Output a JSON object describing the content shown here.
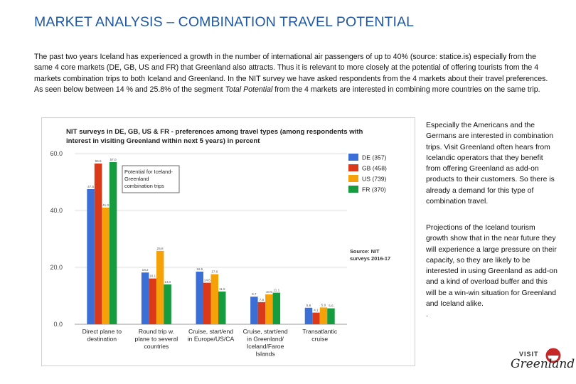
{
  "page": {
    "title": "MARKET ANALYSIS – COMBINATION TRAVEL POTENTIAL",
    "intro_part1": "The past two years Iceland has experienced a growth in the number of international air passengers of up to 40% (source: statice.is) especially from the same 4 core markets (DE, GB, US and FR) that Greenland also attracts. Thus it is relevant to more closely at the potential of offering tourists from the 4 markets combination trips to both Iceland and Greenland. In the NIT survey we have asked respondents from the 4 markets about their travel preferences. As seen below between 14 % and 25.8% of the segment ",
    "intro_em": "Total Potential",
    "intro_part2": " from the 4 markets are interested in combining more countries on the same trip.",
    "side_text_1": "Especially the Americans and the Germans are interested in combination trips. Visit Greenland often hears from Icelandic operators that they benefit from offering Greenland as add-on products to their customers. So there is already a demand for this type of combination travel.",
    "side_text_2": "Projections of the Iceland tourism growth show that in the near future they will experience a large pressure on their capacity, so they are likely to be interested in using Greenland as add-on and a kind of overload buffer and this will be a win-win situation for Greenland and Iceland alike.",
    "side_text_2_trail": ".",
    "logo_visit": "VISIT",
    "logo_script": "Greenland"
  },
  "chart_data": {
    "type": "bar",
    "title": "NIT surveys in DE, GB, US & FR - preferences among travel types (among respondents with interest in visiting Greenland within next 5 years) in percent",
    "categories": [
      [
        "Direct plane to",
        "destination"
      ],
      [
        "Round trip w.",
        "plane to several",
        "countries"
      ],
      [
        "Cruise, start/end",
        "in Europe/US/CA"
      ],
      [
        "Cruise, start/end",
        "in Greenland/",
        "Iceland/Faroe",
        "Islands"
      ],
      [
        "Transatlantic",
        "cruise"
      ]
    ],
    "series": [
      {
        "name": "DE (357)",
        "color": "#3b6fd6",
        "values": [
          47.5,
          18.2,
          18.5,
          9.7,
          5.8
        ]
      },
      {
        "name": "GB (458)",
        "color": "#db3a1a",
        "values": [
          56.5,
          16.1,
          14.6,
          7.8,
          4.1
        ]
      },
      {
        "name": "US (739)",
        "color": "#f5a20a",
        "values": [
          41.0,
          25.8,
          17.6,
          10.5,
          5.9
        ]
      },
      {
        "name": "FR (370)",
        "color": "#179b3f",
        "values": [
          57.0,
          14.0,
          11.5,
          11.1,
          5.6
        ]
      }
    ],
    "data_labels": [
      [
        "47.5",
        "56.5",
        "41.0",
        "57.0"
      ],
      [
        "18.2",
        "16.1",
        "25.8",
        "14.0"
      ],
      [
        "18.5",
        "14.6",
        "17.6",
        "11.5"
      ],
      [
        "9.7",
        "7.8",
        "10.5",
        "11.1"
      ],
      [
        "5.8",
        "4.1",
        "5.9",
        "5.6"
      ]
    ],
    "ylim": [
      0,
      60
    ],
    "yticks": [
      "0.0",
      "20.0",
      "40.0",
      "60.0"
    ],
    "annotation": "Potential for Iceland-Greenland combination trips",
    "annotation_lines": [
      "Potential for Iceland-",
      "Greenland",
      "combination trips"
    ],
    "source_lines": [
      "Source: NIT",
      "surveys 2016-17"
    ],
    "grid": true,
    "legend": "top-right"
  }
}
